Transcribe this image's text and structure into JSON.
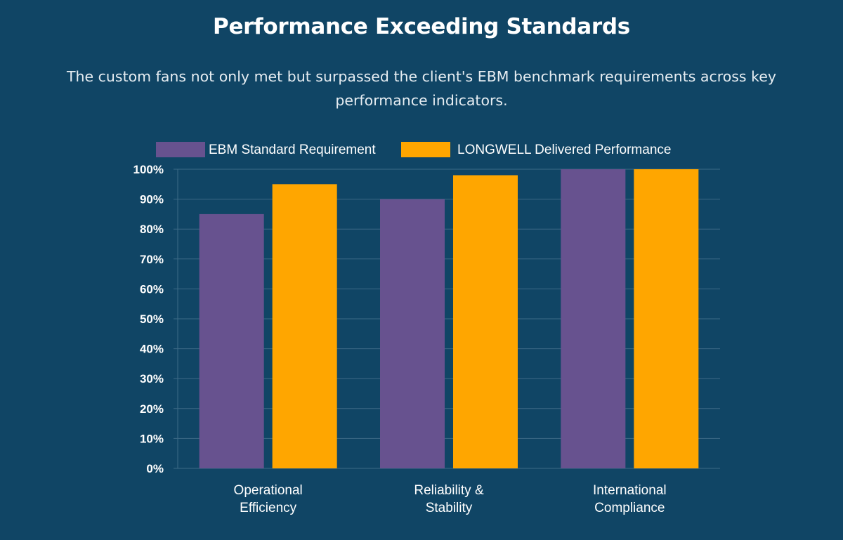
{
  "title": "Performance Exceeding Standards",
  "subtitle": "The custom fans not only met but surpassed the client's EBM benchmark requirements across key performance indicators.",
  "colors": {
    "background": "#104565",
    "ebm": "#67528f",
    "longwell": "#ffa600",
    "grid": "#3d6a86",
    "text": "#ffffff"
  },
  "chart_data": {
    "type": "bar",
    "title": "Performance Exceeding Standards",
    "xlabel": "",
    "ylabel": "",
    "ylim": [
      0,
      100
    ],
    "y_ticks": [
      "0%",
      "10%",
      "20%",
      "30%",
      "40%",
      "50%",
      "60%",
      "70%",
      "80%",
      "90%",
      "100%"
    ],
    "grid": true,
    "legend_position": "top-center",
    "categories": [
      [
        "Operational",
        "Efficiency"
      ],
      [
        "Reliability &",
        "Stability"
      ],
      [
        "International",
        "Compliance"
      ]
    ],
    "series": [
      {
        "name": "EBM Standard Requirement",
        "color": "#67528f",
        "values": [
          85,
          90,
          100
        ]
      },
      {
        "name": "LONGWELL Delivered Performance",
        "color": "#ffa600",
        "values": [
          95,
          98,
          100
        ]
      }
    ]
  }
}
